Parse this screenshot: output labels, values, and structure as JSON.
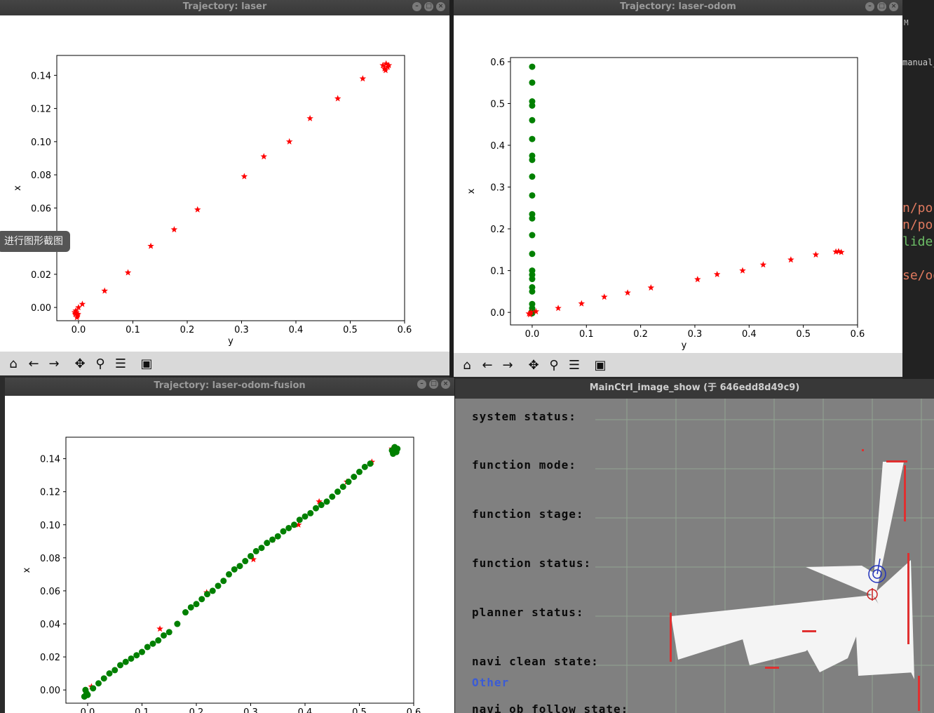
{
  "windows": {
    "laser": {
      "title": "Trajectory: laser"
    },
    "laser_odom": {
      "title": "Trajectory: laser-odom"
    },
    "fusion": {
      "title": "Trajectory: laser-odom-fusion"
    },
    "main": {
      "title": "MainCtrl_image_show (于 646edd8d49c9)"
    }
  },
  "toolbar_icons": [
    "home-icon",
    "back-arrow-icon",
    "forward-arrow-icon",
    "pan-icon",
    "zoom-icon",
    "configure-subplots-icon",
    "save-icon"
  ],
  "tooltip": "进行图形截图",
  "editor_fragments": [
    "M",
    "manual_",
    "n/pose",
    "n/pose",
    "lider/",
    "se/odo"
  ],
  "status_panel": {
    "labels": [
      "system status:",
      "function mode:",
      "function stage:",
      "function status:",
      "planner status:",
      "navi clean state:",
      "navi ob follow state:"
    ],
    "navi_clean_value": "Other"
  },
  "colors": {
    "laser": "#ff0000",
    "odom": "#008000",
    "status_value": "#3a5bd6"
  },
  "chart_data": [
    {
      "type": "scatter",
      "title": "",
      "xlabel": "y",
      "ylabel": "x",
      "xlim": [
        -0.04,
        0.6
      ],
      "ylim": [
        -0.008,
        0.152
      ],
      "xticks": [
        "0.0",
        "0.1",
        "0.2",
        "0.3",
        "0.4",
        "0.5",
        "0.6"
      ],
      "yticks": [
        "0.00",
        "0.02",
        "0.04",
        "0.06",
        "0.08",
        "0.10",
        "0.12",
        "0.14"
      ],
      "series": [
        {
          "marker": "star",
          "color": "#ff0000",
          "x": [
            -0.006,
            -0.004,
            -0.002,
            -0.005,
            -0.003,
            -0.007,
            0.0,
            -0.001,
            0.007,
            0.048,
            0.091,
            0.133,
            0.176,
            0.219,
            0.305,
            0.341,
            0.388,
            0.426,
            0.477,
            0.523,
            0.56,
            0.563,
            0.566,
            0.569,
            0.571,
            0.565
          ],
          "y": [
            -0.004,
            -0.003,
            -0.005,
            -0.002,
            -0.006,
            -0.003,
            0.0,
            -0.004,
            0.002,
            0.01,
            0.021,
            0.037,
            0.047,
            0.059,
            0.079,
            0.091,
            0.1,
            0.114,
            0.126,
            0.138,
            0.146,
            0.144,
            0.147,
            0.145,
            0.146,
            0.143
          ]
        }
      ]
    },
    {
      "type": "scatter",
      "title": "",
      "xlabel": "y",
      "ylabel": "x",
      "xlim": [
        -0.04,
        0.6
      ],
      "ylim": [
        -0.03,
        0.61
      ],
      "xticks": [
        "0.0",
        "0.1",
        "0.2",
        "0.3",
        "0.4",
        "0.5",
        "0.6"
      ],
      "yticks": [
        "0.0",
        "0.1",
        "0.2",
        "0.3",
        "0.4",
        "0.5",
        "0.6"
      ],
      "series": [
        {
          "marker": "circle",
          "color": "#008000",
          "x": [
            0,
            0,
            0,
            0,
            0,
            0,
            0,
            0,
            0,
            0,
            0,
            0,
            0,
            0,
            0,
            0,
            0,
            0,
            0,
            0,
            0,
            0,
            0,
            0
          ],
          "y": [
            0.588,
            0.55,
            0.505,
            0.495,
            0.46,
            0.415,
            0.375,
            0.365,
            0.325,
            0.28,
            0.235,
            0.225,
            0.185,
            0.14,
            0.1,
            0.09,
            0.08,
            0.06,
            0.05,
            0.02,
            0.01,
            0.0,
            -0.002,
            0.003
          ]
        },
        {
          "marker": "star",
          "color": "#ff0000",
          "x": [
            -0.006,
            -0.004,
            -0.002,
            0.007,
            0.048,
            0.091,
            0.133,
            0.176,
            0.219,
            0.305,
            0.341,
            0.388,
            0.426,
            0.477,
            0.523,
            0.56,
            0.565,
            0.57
          ],
          "y": [
            -0.003,
            -0.005,
            0.0,
            0.002,
            0.01,
            0.021,
            0.037,
            0.047,
            0.059,
            0.079,
            0.091,
            0.1,
            0.114,
            0.126,
            0.138,
            0.145,
            0.146,
            0.144
          ]
        }
      ]
    },
    {
      "type": "scatter",
      "title": "",
      "xlabel": "",
      "ylabel": "x",
      "xlim": [
        -0.04,
        0.6
      ],
      "ylim": [
        -0.008,
        0.153
      ],
      "xticks": [
        "0.0",
        "0.1",
        "0.2",
        "0.3",
        "0.4",
        "0.5",
        "0.6"
      ],
      "yticks": [
        "0.00",
        "0.02",
        "0.04",
        "0.06",
        "0.08",
        "0.10",
        "0.12",
        "0.14"
      ],
      "series": [
        {
          "marker": "star",
          "color": "#ff0000",
          "x": [
            0.007,
            0.133,
            0.219,
            0.305,
            0.341,
            0.388,
            0.426,
            0.477,
            0.523,
            0.56
          ],
          "y": [
            0.002,
            0.037,
            0.059,
            0.079,
            0.091,
            0.1,
            0.114,
            0.126,
            0.138,
            0.146
          ]
        },
        {
          "marker": "circle",
          "color": "#008000",
          "x": [
            -0.006,
            -0.004,
            -0.002,
            0.0,
            0.01,
            0.02,
            0.03,
            0.04,
            0.05,
            0.06,
            0.07,
            0.08,
            0.09,
            0.1,
            0.11,
            0.12,
            0.13,
            0.14,
            0.15,
            0.165,
            0.18,
            0.19,
            0.2,
            0.21,
            0.22,
            0.23,
            0.24,
            0.25,
            0.26,
            0.27,
            0.28,
            0.29,
            0.3,
            0.31,
            0.32,
            0.33,
            0.34,
            0.35,
            0.36,
            0.37,
            0.38,
            0.39,
            0.4,
            0.41,
            0.42,
            0.43,
            0.44,
            0.45,
            0.46,
            0.47,
            0.48,
            0.49,
            0.5,
            0.51,
            0.52,
            0.56,
            0.565,
            0.57,
            0.568,
            0.562
          ],
          "y": [
            -0.004,
            0.0,
            -0.002,
            -0.003,
            0.001,
            0.004,
            0.007,
            0.01,
            0.012,
            0.015,
            0.017,
            0.019,
            0.021,
            0.023,
            0.026,
            0.028,
            0.03,
            0.033,
            0.035,
            0.04,
            0.047,
            0.05,
            0.052,
            0.055,
            0.058,
            0.06,
            0.063,
            0.066,
            0.07,
            0.073,
            0.075,
            0.078,
            0.081,
            0.084,
            0.086,
            0.089,
            0.091,
            0.093,
            0.096,
            0.098,
            0.1,
            0.103,
            0.105,
            0.107,
            0.11,
            0.112,
            0.114,
            0.117,
            0.12,
            0.123,
            0.126,
            0.129,
            0.132,
            0.135,
            0.137,
            0.145,
            0.147,
            0.146,
            0.144,
            0.143
          ]
        }
      ]
    }
  ]
}
